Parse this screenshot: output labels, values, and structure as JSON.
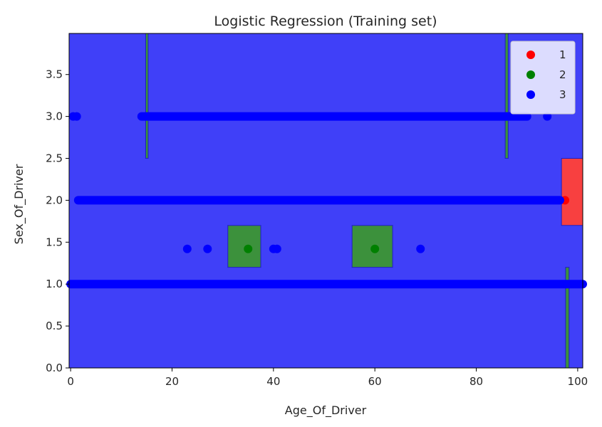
{
  "chart_data": {
    "type": "scatter",
    "title": "Logistic Regression (Training set)",
    "xlabel": "Age_Of_Driver",
    "ylabel": "Sex_Of_Driver",
    "xlim": [
      -0.3,
      101
    ],
    "ylim": [
      0,
      3.99
    ],
    "xticks": [
      0,
      20,
      40,
      60,
      80,
      100
    ],
    "yticks": [
      0.0,
      0.5,
      1.0,
      1.5,
      2.0,
      2.5,
      3.0,
      3.5
    ],
    "xtick_labels": [
      "0",
      "20",
      "40",
      "60",
      "80",
      "100"
    ],
    "ytick_labels": [
      "0.0",
      "0.5",
      "1.0",
      "1.5",
      "2.0",
      "2.5",
      "3.0",
      "3.5"
    ],
    "legend": {
      "placement": "top-right",
      "entries": [
        "1",
        "2",
        "3"
      ]
    },
    "colors": {
      "background_region": "#4040f8",
      "region_1": "#f84040",
      "region_2": "#3c913c",
      "point_1": "#ff0000",
      "point_2": "#008000",
      "point_3": "#0000ff"
    },
    "regions": [
      {
        "class": "2",
        "x": [
          14.8,
          15.3
        ],
        "y": [
          2.5,
          3.99
        ]
      },
      {
        "class": "2",
        "x": [
          85.7,
          86.3
        ],
        "y": [
          2.5,
          3.99
        ]
      },
      {
        "class": "1",
        "x": [
          96.8,
          101
        ],
        "y": [
          1.7,
          2.5
        ]
      },
      {
        "class": "2",
        "x": [
          31,
          37.5
        ],
        "y": [
          1.2,
          1.7
        ]
      },
      {
        "class": "2",
        "x": [
          55.5,
          63.5
        ],
        "y": [
          1.2,
          1.7
        ]
      },
      {
        "class": "2",
        "x": [
          97.6,
          98.3
        ],
        "y": [
          0,
          1.2
        ]
      }
    ],
    "series": [
      {
        "name": "1",
        "segments": [],
        "points": [
          {
            "x": 97.5,
            "y": 2.0
          }
        ]
      },
      {
        "name": "2",
        "segments": [],
        "points": [
          {
            "x": 35,
            "y": 1.42
          },
          {
            "x": 60,
            "y": 1.42
          }
        ]
      },
      {
        "name": "3",
        "segments": [
          {
            "x0": 14,
            "x1": 90,
            "y": 3.0
          },
          {
            "x0": 1.5,
            "x1": 96.5,
            "y": 2.0
          },
          {
            "x0": 0,
            "x1": 101,
            "y": 1.0
          }
        ],
        "points": [
          {
            "x": 0.5,
            "y": 3.0
          },
          {
            "x": 1.2,
            "y": 3.0
          },
          {
            "x": 94,
            "y": 3.0
          },
          {
            "x": 23,
            "y": 1.42
          },
          {
            "x": 27,
            "y": 1.42
          },
          {
            "x": 40,
            "y": 1.42
          },
          {
            "x": 40.7,
            "y": 1.42
          },
          {
            "x": 69,
            "y": 1.42
          }
        ]
      }
    ]
  }
}
